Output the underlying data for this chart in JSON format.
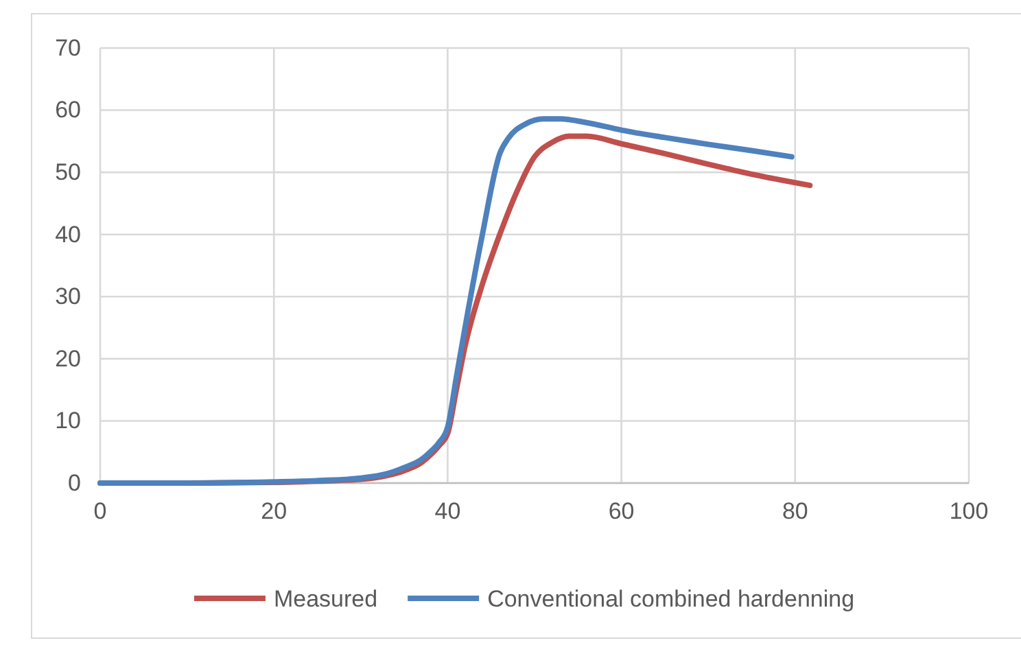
{
  "chart_data": {
    "type": "line",
    "xlim": [
      0,
      100
    ],
    "xticks": [
      0,
      20,
      40,
      60,
      80,
      100
    ],
    "ylim": [
      0,
      70
    ],
    "yticks": [
      0,
      10,
      20,
      30,
      40,
      50,
      60,
      70
    ],
    "grid": true,
    "legend": "bottom",
    "marker": "none",
    "line_style": "solid",
    "series": [
      {
        "name": "Measured",
        "color": "#c0504d",
        "x": [
          0,
          10,
          20,
          25,
          30,
          33,
          35,
          37,
          38,
          39,
          40,
          41,
          42,
          44,
          46,
          48,
          50,
          52,
          54,
          56,
          60,
          65,
          70,
          75,
          81.7
        ],
        "values": [
          0,
          0,
          0.1,
          0.3,
          0.6,
          1.2,
          2,
          3.3,
          4.5,
          6,
          8,
          15,
          22,
          32,
          40,
          47,
          52.5,
          54.8,
          55.8,
          55.8,
          54.6,
          53,
          51.3,
          49.7,
          47.9
        ]
      },
      {
        "name": "Conventional combined hardenning",
        "color": "#4f81bd",
        "x": [
          0,
          10,
          20,
          25,
          30,
          33,
          35,
          37,
          38,
          39,
          40,
          41,
          42,
          44,
          46,
          47,
          49,
          51,
          53,
          56,
          60,
          65,
          70,
          75,
          79.6
        ],
        "values": [
          0,
          0,
          0.2,
          0.4,
          0.8,
          1.5,
          2.5,
          3.8,
          5,
          6.5,
          9,
          17,
          25,
          40,
          53,
          55.5,
          57.8,
          58.6,
          58.6,
          58,
          56.8,
          55.6,
          54.5,
          53.5,
          52.5
        ]
      }
    ]
  }
}
